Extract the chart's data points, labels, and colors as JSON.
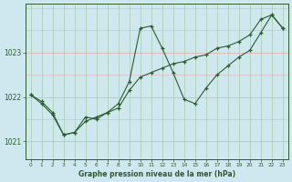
{
  "title": "Graphe pression niveau de la mer (hPa)",
  "background_color": "#cfe8f0",
  "hgrid_color": "#e8b0b0",
  "vgrid_color": "#a8cca8",
  "line_color": "#2d5a2d",
  "xlim": [
    -0.5,
    23.5
  ],
  "ylim": [
    1020.6,
    1024.1
  ],
  "yticks": [
    1021,
    1022,
    1023
  ],
  "xticks": [
    0,
    1,
    2,
    3,
    4,
    5,
    6,
    7,
    8,
    9,
    10,
    11,
    12,
    13,
    14,
    15,
    16,
    17,
    18,
    19,
    20,
    21,
    22,
    23
  ],
  "series1_x": [
    0,
    1,
    2,
    3,
    4,
    5,
    6,
    7,
    8,
    9,
    10,
    11,
    12,
    13,
    14,
    15,
    16,
    17,
    18,
    19,
    20,
    21,
    22,
    23
  ],
  "series1_y": [
    1022.05,
    1021.9,
    1021.65,
    1021.15,
    1021.2,
    1021.55,
    1021.5,
    1021.65,
    1021.85,
    1022.35,
    1023.55,
    1023.6,
    1023.1,
    1022.55,
    1021.95,
    1021.85,
    1022.2,
    1022.5,
    1022.7,
    1022.9,
    1023.05,
    1023.45,
    1023.85,
    1023.55
  ],
  "series2_x": [
    0,
    1,
    2,
    3,
    4,
    5,
    6,
    7,
    8,
    9,
    10,
    11,
    12,
    13,
    14,
    15,
    16,
    17,
    18,
    19,
    20,
    21,
    22,
    23
  ],
  "series2_y": [
    1022.05,
    1021.85,
    1021.6,
    1021.15,
    1021.2,
    1021.45,
    1021.55,
    1021.65,
    1021.75,
    1022.15,
    1022.45,
    1022.55,
    1022.65,
    1022.75,
    1022.8,
    1022.9,
    1022.95,
    1023.1,
    1023.15,
    1023.25,
    1023.4,
    1023.75,
    1023.85,
    1023.55
  ]
}
